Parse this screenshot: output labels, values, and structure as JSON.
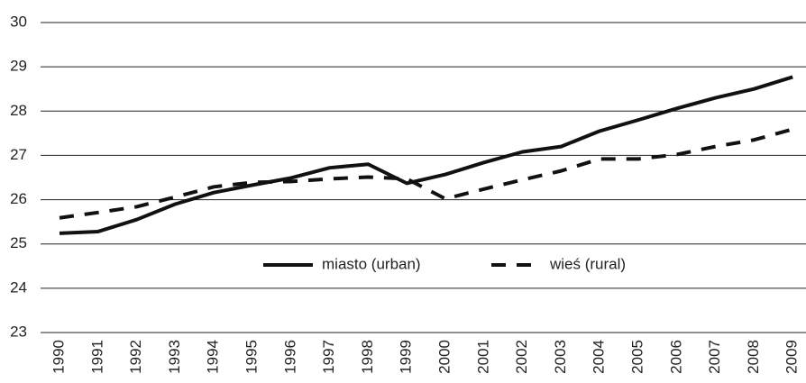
{
  "chart_data": {
    "type": "line",
    "categories": [
      "1990",
      "1991",
      "1992",
      "1993",
      "1994",
      "1995",
      "1996",
      "1997",
      "1998",
      "1999",
      "2000",
      "2001",
      "2002",
      "2003",
      "2004",
      "2005",
      "2006",
      "2007",
      "2008",
      "2009"
    ],
    "series": [
      {
        "name": "miasto (urban)",
        "color": "#111111",
        "line_style": "solid",
        "values": [
          25.24,
          25.28,
          25.55,
          25.9,
          26.16,
          26.33,
          26.49,
          26.72,
          26.8,
          26.37,
          26.57,
          26.84,
          27.08,
          27.2,
          27.55,
          27.8,
          28.06,
          28.3,
          28.5,
          28.77
        ]
      },
      {
        "name": "wieś (rural)",
        "color": "#111111",
        "line_style": "dashed",
        "values": [
          25.59,
          25.71,
          25.84,
          26.06,
          26.29,
          26.39,
          26.41,
          26.47,
          26.51,
          26.47,
          26.02,
          26.24,
          26.45,
          26.65,
          26.92,
          26.92,
          27.02,
          27.2,
          27.35,
          27.59
        ]
      }
    ],
    "ylim": [
      23,
      30
    ],
    "yticks": [
      23,
      24,
      25,
      26,
      27,
      28,
      29,
      30
    ],
    "grid": true,
    "legend": "center"
  }
}
